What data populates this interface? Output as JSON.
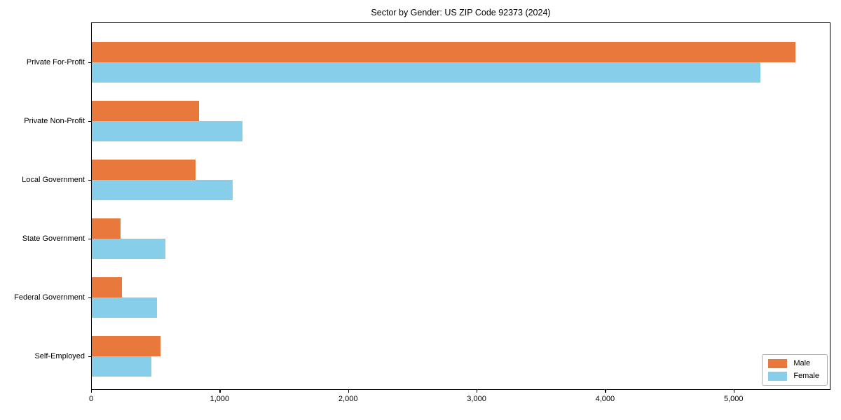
{
  "chart_data": {
    "type": "bar",
    "orientation": "horizontal",
    "title": "Sector by Gender: US ZIP Code 92373 (2024)",
    "categories": [
      "Private For-Profit",
      "Private Non-Profit",
      "Local Government",
      "State Government",
      "Federal Government",
      "Self-Employed"
    ],
    "series": [
      {
        "name": "Male",
        "color": "#E8783C",
        "values": [
          5480,
          840,
          810,
          230,
          240,
          540
        ]
      },
      {
        "name": "Female",
        "color": "#87CEEB",
        "values": [
          5210,
          1180,
          1100,
          580,
          510,
          470
        ]
      }
    ],
    "xlim": [
      0,
      5754
    ],
    "x_ticks": [
      0,
      1000,
      2000,
      3000,
      4000,
      5000
    ],
    "x_tick_labels": [
      "0",
      "1,000",
      "2,000",
      "3,000",
      "4,000",
      "5,000"
    ],
    "xlabel": "",
    "ylabel": "",
    "grid": false,
    "legend_position": "lower right",
    "plot_border_color": "#000000",
    "background_color": "#ffffff"
  }
}
